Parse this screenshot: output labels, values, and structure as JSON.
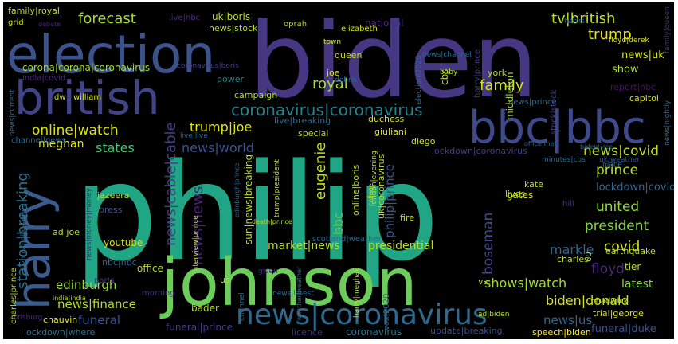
{
  "colors": {
    "background": "#000000",
    "frame": "#ffffff",
    "palette": [
      "#440154",
      "#482878",
      "#3e4989",
      "#31688e",
      "#26828e",
      "#1f9e89",
      "#35b779",
      "#6ece58",
      "#b5de2b",
      "#fde725"
    ]
  },
  "words": [
    {
      "text": "philip",
      "color": "#21a685"
    },
    {
      "text": "biden",
      "color": "#453781"
    },
    {
      "text": "johnson",
      "color": "#6ccd5a"
    },
    {
      "text": "election",
      "color": "#3b528b"
    },
    {
      "text": "british",
      "color": "#414487"
    },
    {
      "text": "bbc|bbc",
      "color": "#3e4a89"
    },
    {
      "text": "harry",
      "color": "#3b5b8c"
    },
    {
      "text": "news|coronavirus",
      "color": "#30698e"
    },
    {
      "text": "coronavirus|coronavirus",
      "color": "#26818e"
    },
    {
      "text": "forecast",
      "color": "#a5db36"
    },
    {
      "text": "royal",
      "color": "#a2da37"
    },
    {
      "text": "family",
      "color": "#d2e21b"
    },
    {
      "text": "tv|british",
      "color": "#b8de29"
    },
    {
      "text": "trump",
      "color": "#e7e419"
    },
    {
      "text": "online|watch",
      "color": "#d8e219"
    },
    {
      "text": "trump|joe",
      "color": "#dde318"
    },
    {
      "text": "states",
      "color": "#4ac16d"
    },
    {
      "text": "news|world",
      "color": "#3b528b"
    },
    {
      "text": "news|news",
      "color": "#482374"
    },
    {
      "text": "meghan",
      "color": "#dde318"
    },
    {
      "text": "station|breaking",
      "color": "#2c728e"
    },
    {
      "text": "news|cable|cable",
      "color": "#433e85"
    },
    {
      "text": "eugenie",
      "color": "#bddf26"
    },
    {
      "text": "bbc",
      "color": "#5ec962"
    },
    {
      "text": "philip|prince",
      "color": "#39568c"
    },
    {
      "text": "news|covid",
      "color": "#bddf26"
    },
    {
      "text": "prince",
      "color": "#b5de2b"
    },
    {
      "text": "united",
      "color": "#95d840"
    },
    {
      "text": "president",
      "color": "#86d549"
    },
    {
      "text": "covid",
      "color": "#d2e21b"
    },
    {
      "text": "markle",
      "color": "#31688e"
    },
    {
      "text": "market|news",
      "color": "#b5de2b"
    },
    {
      "text": "presidential",
      "color": "#bddf26"
    },
    {
      "text": "boseman",
      "color": "#3e4a89"
    },
    {
      "text": "edinburgh",
      "color": "#95d840"
    },
    {
      "text": "floyd",
      "color": "#482878"
    },
    {
      "text": "shows|watch",
      "color": "#a0da39"
    },
    {
      "text": "latest",
      "color": "#86d549"
    },
    {
      "text": "biden|donald",
      "color": "#d8e219"
    },
    {
      "text": "news|finance",
      "color": "#b5de2b"
    },
    {
      "text": "funeral",
      "color": "#3b528b"
    },
    {
      "text": "news|us",
      "color": "#31688e"
    },
    {
      "text": "chauvin",
      "color": "#e5e419"
    },
    {
      "text": "funeral|prince",
      "color": "#443983"
    },
    {
      "text": "funeral|duke",
      "color": "#3b528b"
    },
    {
      "text": "coronavirus",
      "color": "#2a788e"
    },
    {
      "text": "licence",
      "color": "#472c7a"
    },
    {
      "text": "update|breaking",
      "color": "#3b528b"
    },
    {
      "text": "speech|biden",
      "color": "#fde725"
    },
    {
      "text": "trial|george",
      "color": "#dde318"
    },
    {
      "text": "lockdown|where",
      "color": "#2c728e"
    },
    {
      "text": "bader",
      "color": "#bddf26"
    },
    {
      "text": "charles",
      "color": "#bddf26"
    },
    {
      "text": "tier",
      "color": "#b5de2b"
    },
    {
      "text": "earthquake",
      "color": "#b5de2b"
    },
    {
      "text": "news|uk",
      "color": "#d2e21b"
    },
    {
      "text": "show",
      "color": "#b5de2b"
    },
    {
      "text": "capitol",
      "color": "#d8e219"
    },
    {
      "text": "report|nbc",
      "color": "#471164"
    },
    {
      "text": "lockdown|covid",
      "color": "#31688e"
    },
    {
      "text": "gates",
      "color": "#d8e219"
    },
    {
      "text": "kate",
      "color": "#b8de29"
    },
    {
      "text": "lives",
      "color": "#b5de2b"
    },
    {
      "text": "fire",
      "color": "#d8e219"
    },
    {
      "text": "vs",
      "color": "#b8de29"
    },
    {
      "text": "us",
      "color": "#b5de2b"
    },
    {
      "text": "office",
      "color": "#b5de2b"
    },
    {
      "text": "nbc|nbc",
      "color": "#31688e"
    },
    {
      "text": "youtube",
      "color": "#d2e21b"
    },
    {
      "text": "ad|joe",
      "color": "#b5de2b"
    },
    {
      "text": "press",
      "color": "#3b528b"
    },
    {
      "text": "jazeera",
      "color": "#b8de29"
    },
    {
      "text": "middleton",
      "color": "#a5db36"
    },
    {
      "text": "york",
      "color": "#b5de2b"
    },
    {
      "text": "cbs",
      "color": "#b5de2b"
    },
    {
      "text": "queen",
      "color": "#d2e21b"
    },
    {
      "text": "joe",
      "color": "#d8e219"
    },
    {
      "text": "power",
      "color": "#26828e"
    },
    {
      "text": "campaign",
      "color": "#b5de2b"
    },
    {
      "text": "special",
      "color": "#b5de2b"
    },
    {
      "text": "duchess",
      "color": "#d2e21b"
    },
    {
      "text": "giuliani",
      "color": "#d2e21b"
    },
    {
      "text": "diego",
      "color": "#d2e21b"
    },
    {
      "text": "live|breaking",
      "color": "#31688e"
    },
    {
      "text": "lockdown|coronavirus",
      "color": "#433e85"
    },
    {
      "text": "minutes|cbs",
      "color": "#31688e"
    },
    {
      "text": "uk|weather",
      "color": "#3b528b"
    },
    {
      "text": "live|live",
      "color": "#31688e"
    },
    {
      "text": "dw",
      "color": "#d2e21b"
    },
    {
      "text": "william",
      "color": "#d2e21b"
    },
    {
      "text": "india|covid",
      "color": "#472c7a"
    },
    {
      "text": "corona|corona|coronavirus",
      "color": "#a5db36"
    },
    {
      "text": "coronavirus|boris",
      "color": "#433e85"
    },
    {
      "text": "family|royal",
      "color": "#bddf26"
    },
    {
      "text": "grid",
      "color": "#d2e21b"
    },
    {
      "text": "live|nbc",
      "color": "#472c7a"
    },
    {
      "text": "debate",
      "color": "#482878"
    },
    {
      "text": "uk|boris",
      "color": "#b5de2b"
    },
    {
      "text": "news|stock",
      "color": "#b5de2b"
    },
    {
      "text": "oprah",
      "color": "#b5de2b"
    },
    {
      "text": "national",
      "color": "#472c7a"
    },
    {
      "text": "elizabeth",
      "color": "#d2e21b"
    },
    {
      "text": "town",
      "color": "#d2e21b"
    },
    {
      "text": "harris",
      "color": "#31688e"
    },
    {
      "text": "floyd|derek",
      "color": "#d2e21b"
    },
    {
      "text": "family|queen",
      "color": "#472c7a"
    },
    {
      "text": "news|prince",
      "color": "#31688e"
    },
    {
      "text": "news|nightly",
      "color": "#31688e"
    },
    {
      "text": "harry|prince",
      "color": "#433e85"
    },
    {
      "text": "news|channel",
      "color": "#31688e"
    },
    {
      "text": "election|2020",
      "color": "#31688e"
    },
    {
      "text": "baby",
      "color": "#b5de2b"
    },
    {
      "text": "debris",
      "color": "#31688e"
    },
    {
      "text": "channel|news",
      "color": "#31688e"
    },
    {
      "text": "news|current",
      "color": "#31688e"
    },
    {
      "text": "news|money|money",
      "color": "#472c7a"
    },
    {
      "text": "hill",
      "color": "#472c7a"
    },
    {
      "text": "piane",
      "color": "#31688e"
    },
    {
      "text": "biden|vice",
      "color": "#31688e"
    },
    {
      "text": "office|met",
      "color": "#31688e"
    },
    {
      "text": "stock|stock",
      "color": "#433e85"
    },
    {
      "text": "sun|news|breaking",
      "color": "#b5de2b"
    },
    {
      "text": "online|boris",
      "color": "#b5de2b"
    },
    {
      "text": "uk|coronavirus",
      "color": "#b5de2b"
    },
    {
      "text": "trump|president",
      "color": "#b5de2b"
    },
    {
      "text": "edinburgh|prince",
      "color": "#31688e"
    },
    {
      "text": "death|prince",
      "color": "#b5de2b"
    },
    {
      "text": "interview|prince",
      "color": "#b5de2b"
    },
    {
      "text": "london|evening",
      "color": "#b5de2b"
    },
    {
      "text": "scotland|weather",
      "color": "#31688e"
    },
    {
      "text": "college",
      "color": "#b5de2b"
    },
    {
      "text": "given",
      "color": "#472c7a"
    },
    {
      "text": "parts",
      "color": "#472c7a"
    },
    {
      "text": "morning",
      "color": "#472c7a"
    },
    {
      "text": "channel",
      "color": "#31688e"
    },
    {
      "text": "news|latest",
      "color": "#31688e"
    },
    {
      "text": "weather|weather",
      "color": "#31688e"
    },
    {
      "text": "ginsburg",
      "color": "#472c7a"
    },
    {
      "text": "harry|meghan",
      "color": "#b5de2b"
    },
    {
      "text": "vox|2020",
      "color": "#31688e"
    },
    {
      "text": "ad|biden",
      "color": "#b5de2b"
    },
    {
      "text": "chadwick",
      "color": "#b5de2b"
    },
    {
      "text": "charles|prince",
      "color": "#b5de2b"
    },
    {
      "text": "england|weather",
      "color": "#31688e"
    },
    {
      "text": "india|india",
      "color": "#b5de2b"
    },
    {
      "text": "60",
      "color": "#b5de2b"
    }
  ]
}
